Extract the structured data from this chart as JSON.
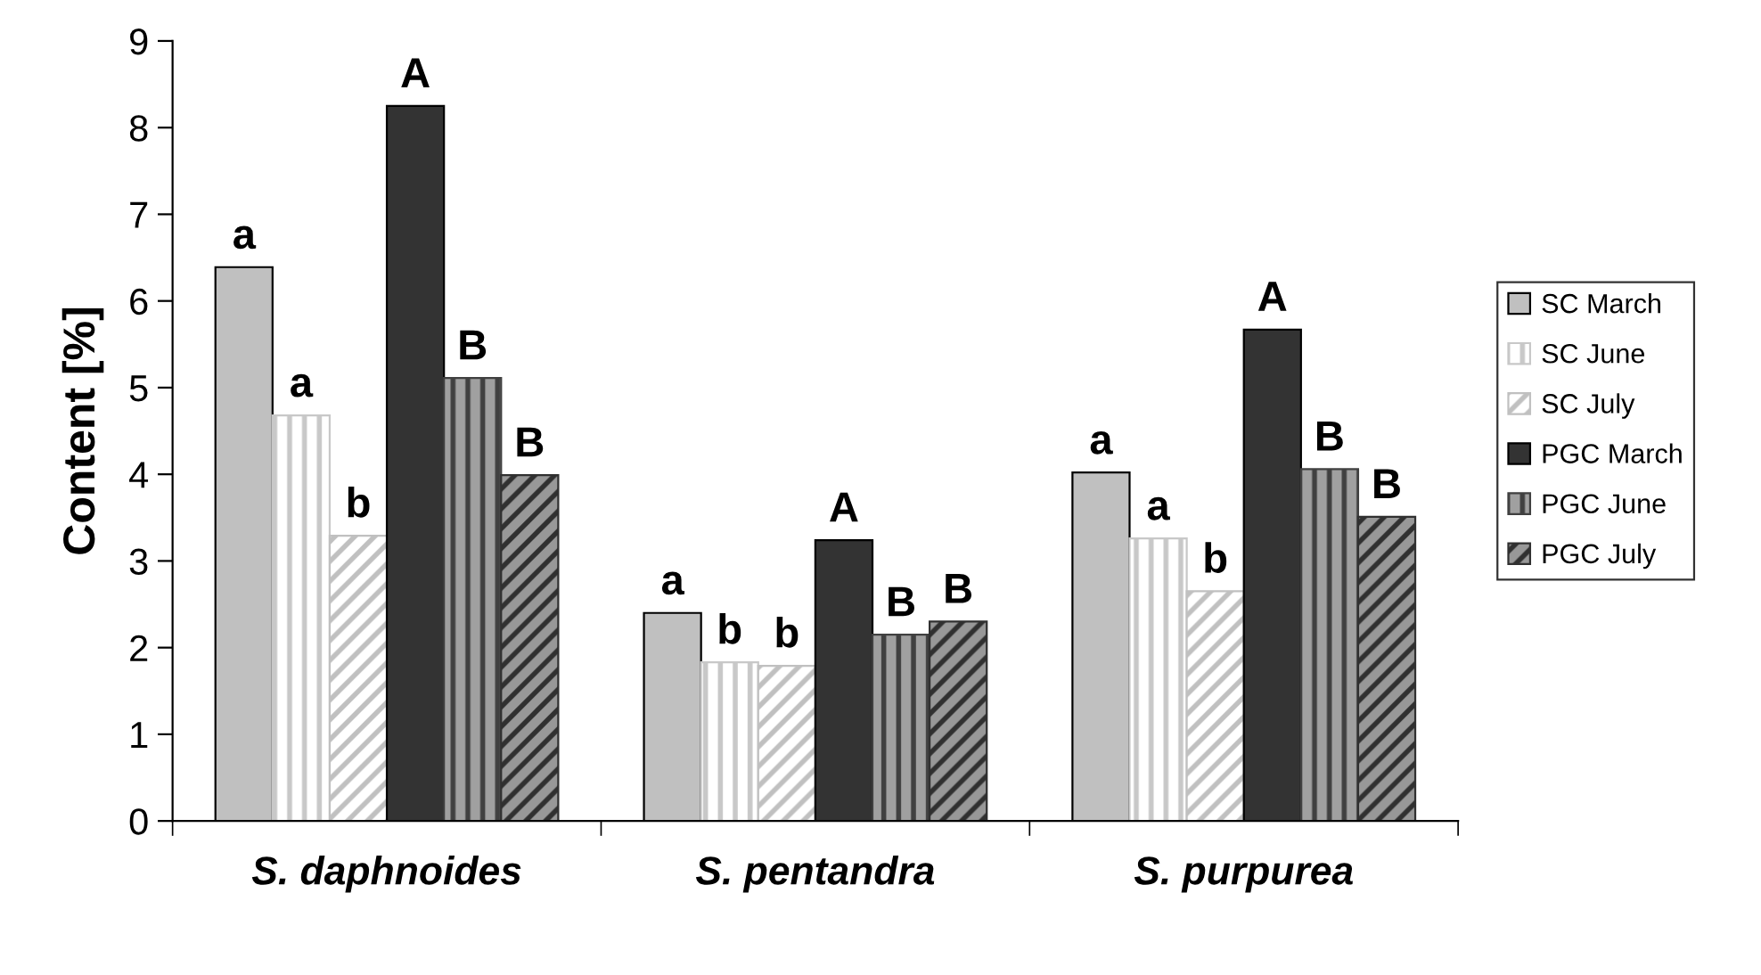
{
  "chart_data": {
    "type": "bar",
    "ylabel": "Content [%]",
    "categories": [
      "S. daphnoides",
      "S. pentandra",
      "S. purpurea"
    ],
    "series": [
      {
        "name": "SC March",
        "color": "#c0c0c0",
        "values": [
          6.39,
          2.4,
          4.02
        ],
        "value_labels": [
          "a",
          "a",
          "a"
        ]
      },
      {
        "name": "SC June",
        "color": "#c8c8c8",
        "values": [
          4.68,
          1.83,
          3.26
        ],
        "value_labels": [
          "a",
          "b",
          "a"
        ]
      },
      {
        "name": "SC July",
        "color": "#c0c0c0",
        "values": [
          3.29,
          1.79,
          2.65
        ],
        "value_labels": [
          "b",
          "b",
          "b"
        ]
      },
      {
        "name": "PGC March",
        "color": "#333333",
        "values": [
          8.25,
          3.24,
          5.67
        ],
        "value_labels": [
          "A",
          "A",
          "A"
        ]
      },
      {
        "name": "PGC June",
        "color": "#404040",
        "values": [
          5.11,
          2.15,
          4.06
        ],
        "value_labels": [
          "B",
          "B",
          "B"
        ]
      },
      {
        "name": "PGC July",
        "color": "#303030",
        "values": [
          3.99,
          2.3,
          3.51
        ],
        "value_labels": [
          "B",
          "B",
          "B"
        ]
      }
    ],
    "ylim": [
      0,
      9
    ],
    "yticks": [
      0,
      1,
      2,
      3,
      4,
      5,
      6,
      7,
      8,
      9
    ],
    "grid": false,
    "legend": "right"
  }
}
